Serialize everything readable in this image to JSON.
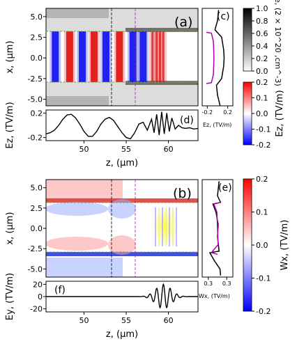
{
  "chart_data": [
    {
      "id": "a",
      "type": "heatmap",
      "panel_label": "(a)",
      "xlabel": "",
      "ylabel": "x, (μm)",
      "xlim": [
        45.5,
        63.5
      ],
      "ylim": [
        -5.8,
        6.0
      ],
      "yticks": [
        "5.0",
        "2.5",
        "0.0",
        "-2.5",
        "-5.0"
      ],
      "yticks_values": [
        5.0,
        2.5,
        0.0,
        -2.5,
        -5.0
      ],
      "channel_boundaries": [
        3.0,
        -3.0
      ],
      "vlines": [
        53.3,
        56.1
      ],
      "field_bands_Ez": [
        {
          "z": 46.6,
          "sign": -1
        },
        {
          "z": 48.3,
          "sign": 1
        },
        {
          "z": 49.8,
          "sign": -1
        },
        {
          "z": 51.2,
          "sign": 1
        },
        {
          "z": 52.6,
          "sign": -1
        },
        {
          "z": 54.2,
          "sign": 1
        },
        {
          "z": 55.8,
          "sign": -1
        },
        {
          "z": 57.0,
          "sign": -1
        },
        {
          "z": 58.1,
          "sign": 1
        },
        {
          "z": 58.6,
          "sign": 1
        },
        {
          "z": 59.0,
          "sign": 1
        },
        {
          "z": 59.4,
          "sign": 1
        }
      ]
    },
    {
      "id": "c",
      "type": "line",
      "panel_label": "(c)",
      "xlabel": "Ez, (TV/m)",
      "xticks": [
        "-0.2",
        "0.2"
      ],
      "xticks_values": [
        -0.2,
        0.2
      ],
      "xlim": [
        -0.3,
        0.3
      ],
      "series": [
        {
          "color": "#000000",
          "points": [
            [
              0.02,
              5.8
            ],
            [
              0.0,
              4.5
            ],
            [
              -0.05,
              3.4
            ],
            [
              0.08,
              2.5
            ],
            [
              0.12,
              1.0
            ],
            [
              0.13,
              0.0
            ],
            [
              0.12,
              -1.0
            ],
            [
              0.08,
              -2.5
            ],
            [
              -0.02,
              -3.3
            ],
            [
              0.0,
              -4.5
            ],
            [
              0.05,
              -5.8
            ]
          ]
        },
        {
          "color": "#b000b0",
          "points": [
            [
              -0.22,
              3.1
            ],
            [
              -0.12,
              3.0
            ],
            [
              -0.08,
              2.0
            ],
            [
              -0.07,
              0.0
            ],
            [
              -0.08,
              -2.0
            ],
            [
              -0.12,
              -3.0
            ],
            [
              -0.22,
              -3.1
            ]
          ]
        }
      ]
    },
    {
      "id": "d",
      "type": "line",
      "panel_label": "(d)",
      "xlabel": "z, (μm)",
      "ylabel": "Ez, (TV/m)",
      "xlim": [
        45.5,
        63.5
      ],
      "ylim": [
        -0.25,
        0.25
      ],
      "xticks": [
        "50",
        "55",
        "60"
      ],
      "xticks_values": [
        50,
        55,
        60
      ],
      "yticks": [
        "0.2",
        "-0.2"
      ],
      "yticks_values": [
        0.2,
        -0.2
      ],
      "x": [
        45.5,
        46.0,
        46.5,
        47.0,
        47.5,
        48.0,
        48.5,
        49.0,
        49.5,
        50.0,
        50.5,
        51.0,
        51.5,
        52.0,
        52.5,
        53.0,
        53.5,
        54.0,
        54.5,
        55.0,
        55.5,
        56.0,
        56.5,
        57.0,
        57.5,
        58.0,
        58.3,
        58.6,
        58.9,
        59.2,
        59.5,
        59.8,
        60.1,
        60.4,
        60.8,
        61.2,
        61.6,
        62.0,
        62.5,
        63.0,
        63.5
      ],
      "y": [
        -0.14,
        -0.12,
        -0.08,
        0.0,
        0.1,
        0.17,
        0.18,
        0.12,
        0.02,
        -0.1,
        -0.18,
        -0.18,
        -0.1,
        0.02,
        0.1,
        0.13,
        0.08,
        -0.02,
        -0.12,
        -0.2,
        -0.22,
        -0.12,
        0.02,
        0.05,
        -0.08,
        0.1,
        -0.12,
        0.18,
        -0.16,
        0.22,
        -0.14,
        0.2,
        -0.1,
        0.12,
        -0.06,
        0.0,
        -0.04,
        -0.05,
        -0.04,
        -0.06,
        -0.05
      ]
    },
    {
      "id": "b",
      "type": "heatmap",
      "panel_label": "(b)",
      "ylabel": "x, (μm)",
      "xlim": [
        45.5,
        63.5
      ],
      "ylim": [
        -6.0,
        6.0
      ],
      "yticks": [
        "5.0",
        "2.5",
        "0.0",
        "-2.5",
        "-5.0"
      ],
      "yticks_values": [
        5.0,
        2.5,
        0.0,
        -2.5,
        -5.0
      ],
      "channel_boundaries": [
        3.0,
        -3.0
      ],
      "vlines": [
        53.3,
        56.1
      ]
    },
    {
      "id": "e",
      "type": "line",
      "panel_label": "(e)",
      "xlabel": "Wx, (TV/m)",
      "xticks": [
        "0.3",
        "0.3"
      ],
      "xticks_values": [
        -0.3,
        0.3
      ],
      "xlim": [
        -0.5,
        0.5
      ],
      "series": [
        {
          "color": "#000000",
          "points": [
            [
              0.05,
              5.8
            ],
            [
              0.0,
              4.0
            ],
            [
              0.1,
              3.2
            ],
            [
              -0.15,
              3.0
            ],
            [
              -0.05,
              2.0
            ],
            [
              0.02,
              0.5
            ],
            [
              0.0,
              -1.0
            ],
            [
              0.05,
              -2.8
            ],
            [
              -0.25,
              -3.0
            ],
            [
              -0.1,
              -4.0
            ],
            [
              0.08,
              -5.0
            ],
            [
              0.1,
              -5.8
            ]
          ]
        },
        {
          "color": "#b000b0",
          "points": [
            [
              0.1,
              3.2
            ],
            [
              -0.12,
              3.0
            ],
            [
              -0.02,
              2.0
            ],
            [
              0.0,
              0.0
            ],
            [
              0.02,
              -2.0
            ],
            [
              -0.2,
              -3.0
            ],
            [
              0.0,
              -3.2
            ]
          ]
        }
      ]
    },
    {
      "id": "f",
      "type": "line",
      "panel_label": "(f)",
      "xlabel": "z, (μm)",
      "ylabel": "Ey, (TV/m)",
      "xlim": [
        45.5,
        63.5
      ],
      "ylim": [
        -25,
        25
      ],
      "xticks": [
        "50",
        "55",
        "60"
      ],
      "xticks_values": [
        50,
        55,
        60
      ],
      "yticks": [
        "20",
        "0",
        "-20"
      ],
      "yticks_values": [
        20,
        0,
        -20
      ],
      "envelope": {
        "center": 59.4,
        "sigma": 0.9,
        "amplitude": 20,
        "wavelength": 0.8
      }
    },
    {
      "id": "colorbar-ne",
      "type": "heatmap",
      "label": "ne, (2 × 10^20 ,cm^-3)",
      "range": [
        0.0,
        1.0
      ],
      "ticks": [
        "1.0",
        "0.8",
        "0.6",
        "0.4",
        "0.2",
        "0.0"
      ],
      "ticks_values": [
        1.0,
        0.8,
        0.6,
        0.4,
        0.2,
        0.0
      ],
      "colors": [
        "#000000",
        "#ffffff"
      ]
    },
    {
      "id": "colorbar-ez",
      "type": "heatmap",
      "label": "Ez, (TV/m)",
      "range": [
        -0.2,
        0.2
      ],
      "ticks": [
        "0.2",
        "0.1",
        "0.0",
        "-0.1",
        "-0.2"
      ],
      "ticks_values": [
        0.2,
        0.1,
        0.0,
        -0.1,
        -0.2
      ],
      "colors": [
        "#0000ff",
        "#ffffff",
        "#ff0000"
      ]
    },
    {
      "id": "colorbar-wx",
      "type": "heatmap",
      "label": "Wx, (TV/m)",
      "range": [
        -0.2,
        0.2
      ],
      "ticks": [
        "0.2",
        "0.1",
        "0.0",
        "-0.1",
        "-0.2"
      ],
      "ticks_values": [
        0.2,
        0.1,
        0.0,
        -0.1,
        -0.2
      ],
      "colors": [
        "#0000ff",
        "#ffffff",
        "#ff0000"
      ]
    }
  ]
}
